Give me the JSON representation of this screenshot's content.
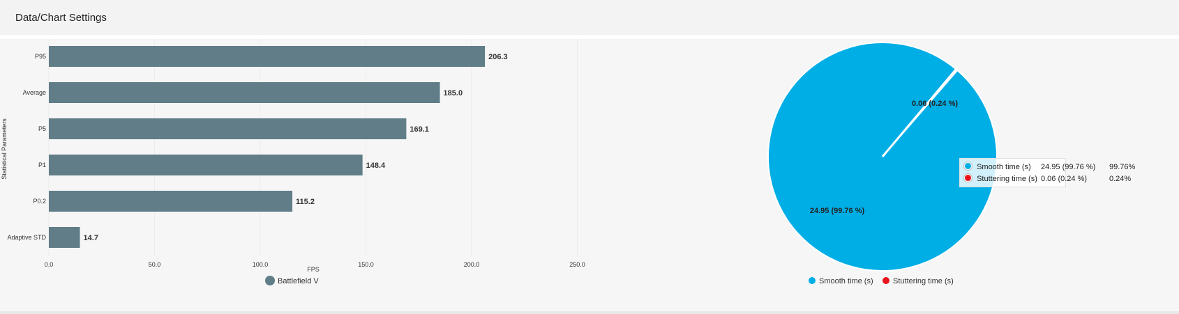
{
  "header": {
    "title": "Data/Chart Settings"
  },
  "colors": {
    "bar": "#607d88",
    "smooth": "#00aee6",
    "stutter": "#e8131b"
  },
  "chart_data": [
    {
      "type": "bar",
      "orientation": "horizontal",
      "categories": [
        "P95",
        "Average",
        "P5",
        "P1",
        "P0.2",
        "Adaptive STD"
      ],
      "series": [
        {
          "name": "Battlefield V",
          "values": [
            206.3,
            185.0,
            169.1,
            148.4,
            115.2,
            14.7
          ]
        }
      ],
      "value_labels": [
        "206.3",
        "185.0",
        "169.1",
        "148.4",
        "115.2",
        "14.7"
      ],
      "xlabel": "FPS",
      "ylabel": "Statistical Parameters",
      "xlim": [
        0,
        250
      ],
      "xticks": [
        "0.0",
        "50.0",
        "100.0",
        "150.0",
        "200.0",
        "250.0"
      ],
      "grid": true,
      "legend": "bottom-center"
    },
    {
      "type": "pie",
      "labels": [
        "Smooth time (s)",
        "Stuttering time (s)"
      ],
      "values": [
        24.95,
        0.06
      ],
      "percents": [
        99.76,
        0.24
      ],
      "slice_labels": [
        "24.95 (99.76 %)",
        "0.06 (0.24 %)"
      ],
      "legend": "bottom-center",
      "tooltip": {
        "rows": [
          {
            "name": "Smooth time (s)",
            "value": "24.95 (99.76 %)",
            "percent": "99.76%"
          },
          {
            "name": "Stuttering time (s)",
            "value": "0.06 (0.24 %)",
            "percent": "0.24%"
          }
        ]
      }
    }
  ]
}
